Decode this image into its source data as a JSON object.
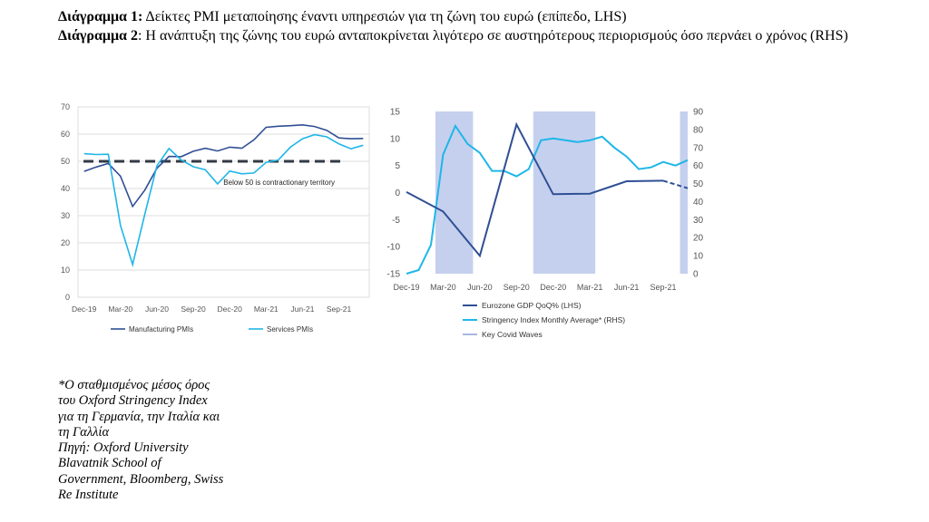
{
  "caption": {
    "line1_label": "Διάγραμμα 1:",
    "line1_text": " Δείκτες PMI μεταποίησης έναντι υπηρεσιών για τη ζώνη του ευρώ (επίπεδο, LHS)",
    "line2_label": "Διάγραμμα 2",
    "line2_text": ": Η ανάπτυξη της ζώνης του ευρώ ανταποκρίνεται λιγότερο σε αυστηρότερους περιορισμούς όσο περνάει ο χρόνος (RHS)"
  },
  "note": {
    "lines": [
      "*Ο σταθμισμένος μέσος όρος",
      "του Oxford Stringency Index",
      "για τη Γερμανία, την Ιταλία και",
      "τη Γαλλία",
      "Πηγή: Oxford University",
      "Blavatnik School of",
      "Government, Bloomberg, Swiss",
      "Re Institute"
    ]
  },
  "colors": {
    "dark_blue": "#2f4f94",
    "light_blue": "#1fb6e8",
    "wave": "#c5d0ee",
    "dash": "#333a44",
    "grid": "#dcdcdc",
    "axis_text": "#555555"
  },
  "chart_data": [
    {
      "type": "line",
      "x": [
        "Dec-19",
        "Jan-20",
        "Feb-20",
        "Mar-20",
        "Apr-20",
        "May-20",
        "Jun-20",
        "Jul-20",
        "Aug-20",
        "Sep-20",
        "Oct-20",
        "Nov-20",
        "Dec-20",
        "Jan-21",
        "Feb-21",
        "Mar-21",
        "Apr-21",
        "May-21",
        "Jun-21",
        "Jul-21",
        "Aug-21",
        "Sep-21",
        "Oct-21",
        "Nov-21"
      ],
      "xticks": [
        "Dec-19",
        "Mar-20",
        "Jun-20",
        "Sep-20",
        "Dec-20",
        "Mar-21",
        "Jun-21",
        "Sep-21"
      ],
      "series": [
        {
          "name": "Manufacturing PMIs",
          "values": [
            46.3,
            47.9,
            49.2,
            44.5,
            33.4,
            39.4,
            47.4,
            51.8,
            51.7,
            53.7,
            54.8,
            53.8,
            55.2,
            54.8,
            57.9,
            62.5,
            62.9,
            63.1,
            63.4,
            62.8,
            61.4,
            58.6,
            58.3,
            58.4
          ]
        },
        {
          "name": "Services PMIs",
          "values": [
            52.8,
            52.5,
            52.6,
            26.4,
            12.0,
            30.5,
            48.3,
            54.7,
            50.5,
            48.0,
            46.9,
            41.7,
            46.4,
            45.4,
            45.7,
            49.6,
            50.5,
            55.2,
            58.3,
            59.8,
            59.0,
            56.4,
            54.6,
            55.9
          ]
        }
      ],
      "reference_line": {
        "value": 50,
        "label": "Below 50 is contractionary territory"
      },
      "ylim": [
        0,
        70
      ],
      "yticks": [
        0,
        10,
        20,
        30,
        40,
        50,
        60,
        70
      ],
      "legend": [
        "Manufacturing PMIs",
        "Services PMIs"
      ],
      "legend_position": "bottom"
    },
    {
      "type": "line",
      "x": [
        "Dec-19",
        "Jan-20",
        "Feb-20",
        "Mar-20",
        "Apr-20",
        "May-20",
        "Jun-20",
        "Jul-20",
        "Aug-20",
        "Sep-20",
        "Oct-20",
        "Nov-20",
        "Dec-20",
        "Jan-21",
        "Feb-21",
        "Mar-21",
        "Apr-21",
        "May-21",
        "Jun-21",
        "Jul-21",
        "Aug-21",
        "Sep-21",
        "Oct-21",
        "Nov-21"
      ],
      "xticks": [
        "Dec-19",
        "Mar-20",
        "Jun-20",
        "Sep-20",
        "Dec-20",
        "Mar-21",
        "Jun-21",
        "Sep-21"
      ],
      "series": [
        {
          "name": "Eurozone GDP QoQ% (LHS)",
          "axis": "left",
          "points": [
            [
              "Dec-19",
              0.1
            ],
            [
              "Mar-20",
              -3.5
            ],
            [
              "Jun-20",
              -11.7
            ],
            [
              "Sep-20",
              12.6
            ],
            [
              "Dec-20",
              -0.3
            ],
            [
              "Mar-21",
              -0.2
            ],
            [
              "Jun-21",
              2.1
            ],
            [
              "Sep-21",
              2.2
            ]
          ],
          "forecast": [
            [
              "Sep-21",
              2.2
            ],
            [
              "Nov-21",
              0.8
            ]
          ]
        },
        {
          "name": "Stringency Index Monthly Average* (RHS)",
          "axis": "right",
          "values": [
            0,
            2,
            16,
            66,
            82,
            72,
            67,
            57,
            57,
            54,
            58,
            74,
            75,
            74,
            73,
            74,
            76,
            70,
            65,
            58,
            59,
            62,
            60,
            63
          ]
        }
      ],
      "waves": [
        [
          "Feb-20",
          "May-20"
        ],
        [
          "Oct-20",
          "Mar-21"
        ],
        [
          "Oct-21",
          "Nov-21"
        ]
      ],
      "ylim_left": [
        -15,
        15
      ],
      "yticks_left": [
        -15,
        -10,
        -5,
        0,
        5,
        10,
        15
      ],
      "ylim_right": [
        0,
        90
      ],
      "yticks_right": [
        0,
        10,
        20,
        30,
        40,
        50,
        60,
        70,
        80,
        90
      ],
      "legend": [
        "Eurozone GDP QoQ% (LHS)",
        "Stringency Index Monthly Average* (RHS)",
        "Key Covid Waves"
      ],
      "legend_position": "bottom"
    }
  ]
}
